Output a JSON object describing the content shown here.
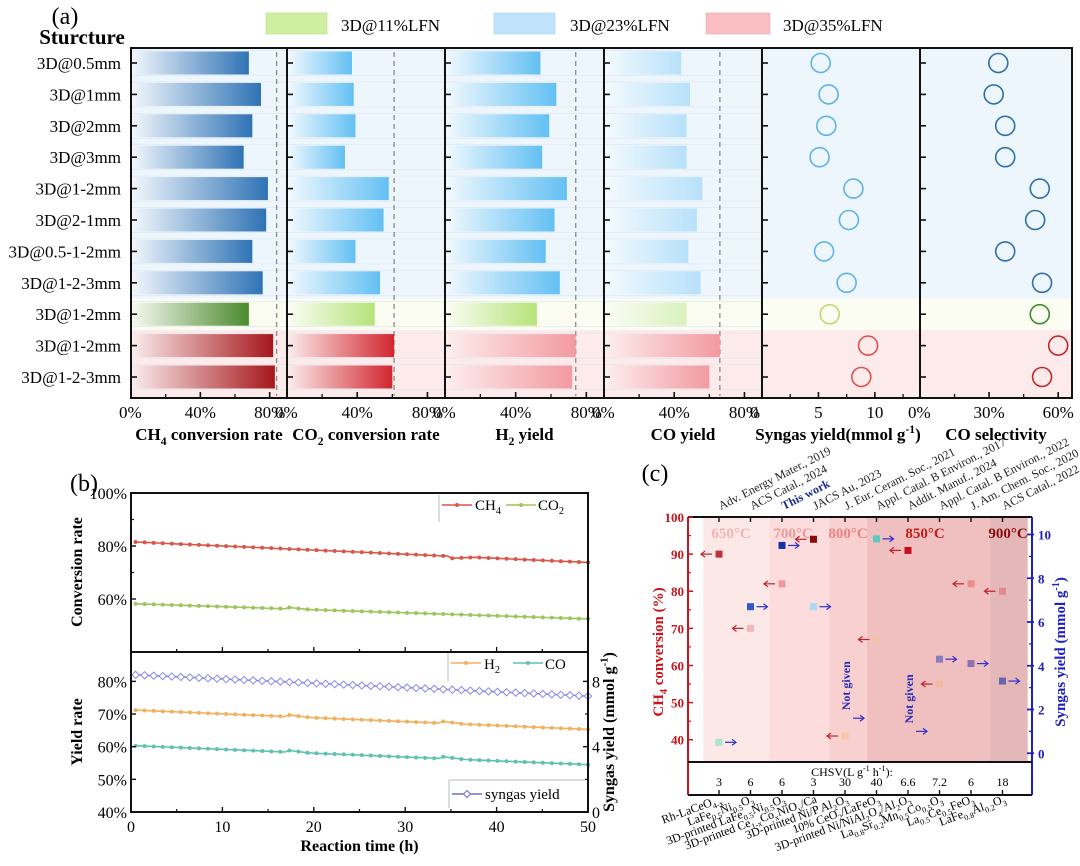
{
  "chart_data": [
    {
      "panel": "(a)",
      "type": "bar",
      "row_header": "Sturcture",
      "legend": [
        {
          "label": "3D@11%LFN",
          "color": "#cfeea0"
        },
        {
          "label": "3D@23%LFN",
          "color": "#bfe3fb"
        },
        {
          "label": "3D@35%LFN",
          "color": "#fbbfc3"
        }
      ],
      "categories": [
        "3D@0.5mm",
        "3D@1mm",
        "3D@2mm",
        "3D@3mm",
        "3D@1-2mm",
        "3D@2-1mm",
        "3D@0.5-1-2mm",
        "3D@1-2-3mm",
        "3D@1-2mm",
        "3D@1-2mm",
        "3D@1-2-3mm"
      ],
      "groups": [
        "23%",
        "23%",
        "23%",
        "23%",
        "23%",
        "23%",
        "23%",
        "23%",
        "11%",
        "35%",
        "35%"
      ],
      "subplots": [
        {
          "xlabel": "CH4 conversion rate",
          "xlabel_main": "CH",
          "xlabel_sub": "4",
          "xlabel_rest": " conversion rate",
          "kind": "bar",
          "xlim": [
            0,
            90
          ],
          "ticks": [
            "0%",
            "40%",
            "80%"
          ],
          "tick_values": [
            0,
            40,
            80
          ],
          "ref_line": 84,
          "values": [
            68,
            75,
            70,
            65,
            79,
            78,
            70,
            76,
            68,
            82,
            83
          ]
        },
        {
          "xlabel": "CO2 conversion rate",
          "xlabel_main": "CO",
          "xlabel_sub": "2",
          "xlabel_rest": " conversion rate",
          "kind": "bar",
          "xlim": [
            0,
            90
          ],
          "ticks": [
            "0%",
            "40%",
            "80%"
          ],
          "tick_values": [
            0,
            40,
            80
          ],
          "ref_line": 61,
          "values": [
            37,
            38,
            39,
            33,
            58,
            55,
            39,
            53,
            50,
            61,
            60
          ]
        },
        {
          "xlabel": "H2 yield",
          "xlabel_main": "H",
          "xlabel_sub": "2",
          "xlabel_rest": " yield",
          "kind": "bar",
          "xlim": [
            0,
            90
          ],
          "ticks": [
            "0%",
            "40%",
            "80%"
          ],
          "tick_values": [
            0,
            40,
            80
          ],
          "ref_line": 74,
          "values": [
            54,
            63,
            59,
            55,
            69,
            62,
            57,
            65,
            52,
            74,
            72
          ]
        },
        {
          "xlabel": "CO yield",
          "xlabel_main": "CO yield",
          "xlabel_sub": "",
          "xlabel_rest": "",
          "kind": "bar",
          "xlim": [
            0,
            90
          ],
          "ticks": [
            "0%",
            "40%",
            "80%"
          ],
          "tick_values": [
            0,
            40,
            80
          ],
          "ref_line": 66,
          "values": [
            44,
            49,
            47,
            47,
            56,
            53,
            48,
            55,
            47,
            66,
            60
          ]
        },
        {
          "xlabel": "Syngas yield(mmol g-1)",
          "xlabel_main": "Syngas yield(mmol g",
          "xlabel_sub": "-1",
          "xlabel_rest": ")",
          "kind": "scatter",
          "xlim": [
            0,
            14
          ],
          "ticks": [
            "0",
            "5",
            "10"
          ],
          "tick_values": [
            0,
            5,
            10
          ],
          "ref_line": null,
          "values": [
            5.2,
            5.9,
            5.7,
            5.1,
            8.1,
            7.7,
            5.5,
            7.5,
            6.0,
            9.4,
            8.8
          ]
        },
        {
          "xlabel": "CO selectivity",
          "xlabel_main": "CO selectivity",
          "xlabel_sub": "",
          "xlabel_rest": "",
          "kind": "scatter",
          "xlim": [
            0,
            66
          ],
          "ticks": [
            "0%",
            "30%",
            "60%"
          ],
          "tick_values": [
            0,
            30,
            60
          ],
          "ref_line": null,
          "values": [
            34,
            32,
            37,
            37,
            52,
            50,
            37,
            53,
            52,
            60,
            53
          ]
        }
      ]
    },
    {
      "panel": "(b)",
      "type": "line",
      "xlabel": "Reaction time (h)",
      "xlim": [
        0,
        50
      ],
      "xticks": [
        "0",
        "10",
        "20",
        "30",
        "40",
        "50"
      ],
      "top": {
        "ylabel": "Conversion rate",
        "ylim": [
          40,
          100
        ],
        "yticks": [
          "100%",
          "80%",
          "60%"
        ],
        "ytick_values": [
          100,
          80,
          60
        ],
        "series": [
          {
            "name": "CH4",
            "name_main": "CH",
            "name_sub": "4",
            "color": "#d9574a",
            "start": 81.5,
            "end": 73.8,
            "step_at": [
              [
                35,
                -0.8
              ]
            ]
          },
          {
            "name": "CO2",
            "name_main": "CO",
            "name_sub": "2",
            "color": "#9cc65c",
            "start": 58.2,
            "end": 52.5,
            "step_at": [
              [
                17,
                0.6
              ]
            ]
          }
        ]
      },
      "bottom": {
        "ylabel": "Yield rate",
        "ylim": [
          40,
          89
        ],
        "yticks": [
          "80%",
          "70%",
          "60%",
          "50%",
          "40%"
        ],
        "ytick_values": [
          80,
          70,
          60,
          50,
          40
        ],
        "y2label": "Syngas yield (mmol g-1)",
        "y2label_main": "Syngas yield (mmol g",
        "y2label_sup": "-1",
        "y2label_end": ")",
        "y2lim": [
          0,
          9.8
        ],
        "y2ticks": [
          "8",
          "4",
          "0"
        ],
        "y2tick_values": [
          8,
          4,
          0
        ],
        "series": [
          {
            "name": "H2",
            "name_main": "H",
            "name_sub": "2",
            "color": "#f0b25e",
            "axis": "left",
            "start": 71.2,
            "end": 65.3,
            "step_at": [
              [
                17,
                0.6
              ],
              [
                34,
                0.6
              ]
            ]
          },
          {
            "name": "CO",
            "name_main": "CO",
            "name_sub": "",
            "color": "#5fc2ad",
            "axis": "left",
            "start": 60.3,
            "end": 54.5,
            "step_at": [
              [
                17,
                0.6
              ],
              [
                34,
                0.6
              ]
            ]
          },
          {
            "name": "syngas yield",
            "name_main": "syngas yield",
            "name_sub": "",
            "color": "#8a8ae6",
            "axis": "right",
            "start": 8.4,
            "end": 7.1,
            "step_at": []
          }
        ]
      }
    },
    {
      "panel": "(c)",
      "type": "scatter",
      "ylabel_left": "CH4 conversion (%)",
      "ylabel_left_main": "CH",
      "ylabel_left_sub": "4",
      "ylabel_left_rest": " conversion (%)",
      "ylim_left": [
        34,
        100
      ],
      "yticks_left": [
        "100",
        "90",
        "80",
        "70",
        "60",
        "50",
        "40"
      ],
      "ytick_values_left": [
        100,
        90,
        80,
        70,
        60,
        50,
        40
      ],
      "ylabel_right": "Syngas yield (mmol g-1)",
      "ylabel_right_main": "Syngas yield (mmol g",
      "ylabel_right_sup": "-1",
      "ylabel_right_end": ")",
      "ylim_right": [
        -0.4,
        10.8
      ],
      "yticks_right": [
        "10",
        "8",
        "6",
        "4",
        "2",
        "0"
      ],
      "ytick_values_right": [
        10,
        8,
        6,
        4,
        2,
        0
      ],
      "chsv_label": "CHSV(L g-1 h-1):",
      "chsv_label_main": "CHSV(L g",
      "chsv_label_sup1": "-1",
      "chsv_label_mid": " h",
      "chsv_label_sup2": "-1",
      "chsv_label_end": "):",
      "temperature_zones": [
        {
          "label": "650°C",
          "from": 0.5,
          "to": 2.6,
          "color": "#fde8e8",
          "text_color": "#f2b3b3"
        },
        {
          "label": "700°C",
          "from": 2.6,
          "to": 4.5,
          "color": "#fcdcdc",
          "text_color": "#ee9a9a"
        },
        {
          "label": "800°C",
          "from": 4.5,
          "to": 5.7,
          "color": "#f9d0d0",
          "text_color": "#e88484"
        },
        {
          "label": "850°C",
          "from": 5.7,
          "to": 9.6,
          "color": "#f0c0c0",
          "text_color": "#c01e1e"
        },
        {
          "label": "900°C",
          "from": 9.6,
          "to": 10.8,
          "color": "#e4b8b8",
          "text_color": "#8a0d0d"
        }
      ],
      "references": [
        "Adv. Energy Mater., 2019",
        "ACS Catal., 2024",
        "This work",
        "JACS Au, 2023",
        "J. Eur. Ceram. Soc., 2021",
        "Appl. Catal. B Environ., 2017",
        "Addit. Manuf., 2024",
        "Appl. Catal. B Environ., 2022",
        "J. Am. Chem. Soc., 2020",
        "ACS Catal., 2022"
      ],
      "highlight_reference": "This work",
      "catalysts": [
        {
          "main": "Rh-LaCeO",
          "sub": "4-x"
        },
        {
          "main": "LaFe",
          "sub": "0.5",
          "main2": "Ni",
          "sub2": "0.5",
          "main3": "O",
          "sub3": "3"
        },
        {
          "main": "3D-printed LaFe",
          "sub": "0.5",
          "main2": "Ni",
          "sub2": "0.5",
          "main3": "O",
          "sub3": "3"
        },
        {
          "main": "3D-printed Ce",
          "sub": "1-x",
          "main2": "Co",
          "sub2": "x",
          "main3": "NiO",
          "sub3": "y",
          "main4": "/Ca"
        },
        {
          "main": "3D-printed Ni/P Al",
          "sub": "2",
          "main2": "O",
          "sub2": "3"
        },
        {
          "main": "10% CeO",
          "sub": "2",
          "main2": "/LaFeO",
          "sub2": "3"
        },
        {
          "main": "3D-printed Ni/NiAl",
          "sub": "2",
          "main2": "O",
          "sub2": "4",
          "main3": "/Al",
          "sub3": "2",
          "main4": "O",
          "sub4": "3"
        },
        {
          "main": "La",
          "sub": "0.8",
          "main2": "Sr",
          "sub2": "0.2",
          "main3": "Mn",
          "sub3": "0.5",
          "main4": "Co",
          "sub4": "0.5",
          "main5": "O",
          "sub5": "3"
        },
        {
          "main": "La",
          "sub": "0.5",
          "main2": "Ce",
          "sub2": "0.5",
          "main3": "FeO",
          "sub3": "3"
        },
        {
          "main": "LaFe",
          "sub": "0.8",
          "main2": "Al",
          "sub2": "0.2",
          "main3": "O",
          "sub3": "3"
        }
      ],
      "chsv_values": [
        "3",
        "6",
        "6",
        "3",
        "30",
        "40",
        "6.6",
        "7.2",
        "6",
        "18"
      ],
      "ch4_conversion": [
        {
          "x": 1,
          "y": 90,
          "color": "#c0313b"
        },
        {
          "x": 2,
          "y": 70,
          "color": "#f4b8b8"
        },
        {
          "x": 3,
          "y": 82,
          "color": "#ee9a9a"
        },
        {
          "x": 4,
          "y": 94,
          "color": "#8b0a0a"
        },
        {
          "x": 5,
          "y": 41,
          "color": "#f6c7a8"
        },
        {
          "x": 6,
          "y": 67,
          "color": "#efc3a6"
        },
        {
          "x": 7,
          "y": 91,
          "color": "#c80f1e"
        },
        {
          "x": 8,
          "y": 55,
          "color": "#f1b9a0"
        },
        {
          "x": 9,
          "y": 82,
          "color": "#ec8d8d"
        },
        {
          "x": 10,
          "y": 80,
          "color": "#e38787"
        }
      ],
      "syngas_yield": [
        {
          "x": 1,
          "y": 0.5,
          "color": "#a8e6c6",
          "given": true
        },
        {
          "x": 2,
          "y": 6.7,
          "color": "#3157c7",
          "given": true
        },
        {
          "x": 3,
          "y": 9.5,
          "color": "#1233a8",
          "given": true
        },
        {
          "x": 4,
          "y": 6.7,
          "color": "#a8dcf6",
          "given": true
        },
        {
          "x": 5,
          "y": 1.6,
          "color": "#3a3ac8",
          "given": false
        },
        {
          "x": 6,
          "y": 9.8,
          "color": "#5ec7c0",
          "given": true
        },
        {
          "x": 7,
          "y": 1.0,
          "color": "#3a3ac8",
          "given": false
        },
        {
          "x": 8,
          "y": 4.3,
          "color": "#8c7bbf",
          "given": true
        },
        {
          "x": 9,
          "y": 4.1,
          "color": "#8873b0",
          "given": true
        },
        {
          "x": 10,
          "y": 3.3,
          "color": "#6b63ad",
          "given": true
        }
      ],
      "not_given_label": "Not given"
    }
  ],
  "labels": {
    "a": "(a)",
    "b": "(b)",
    "c": "(c)"
  }
}
